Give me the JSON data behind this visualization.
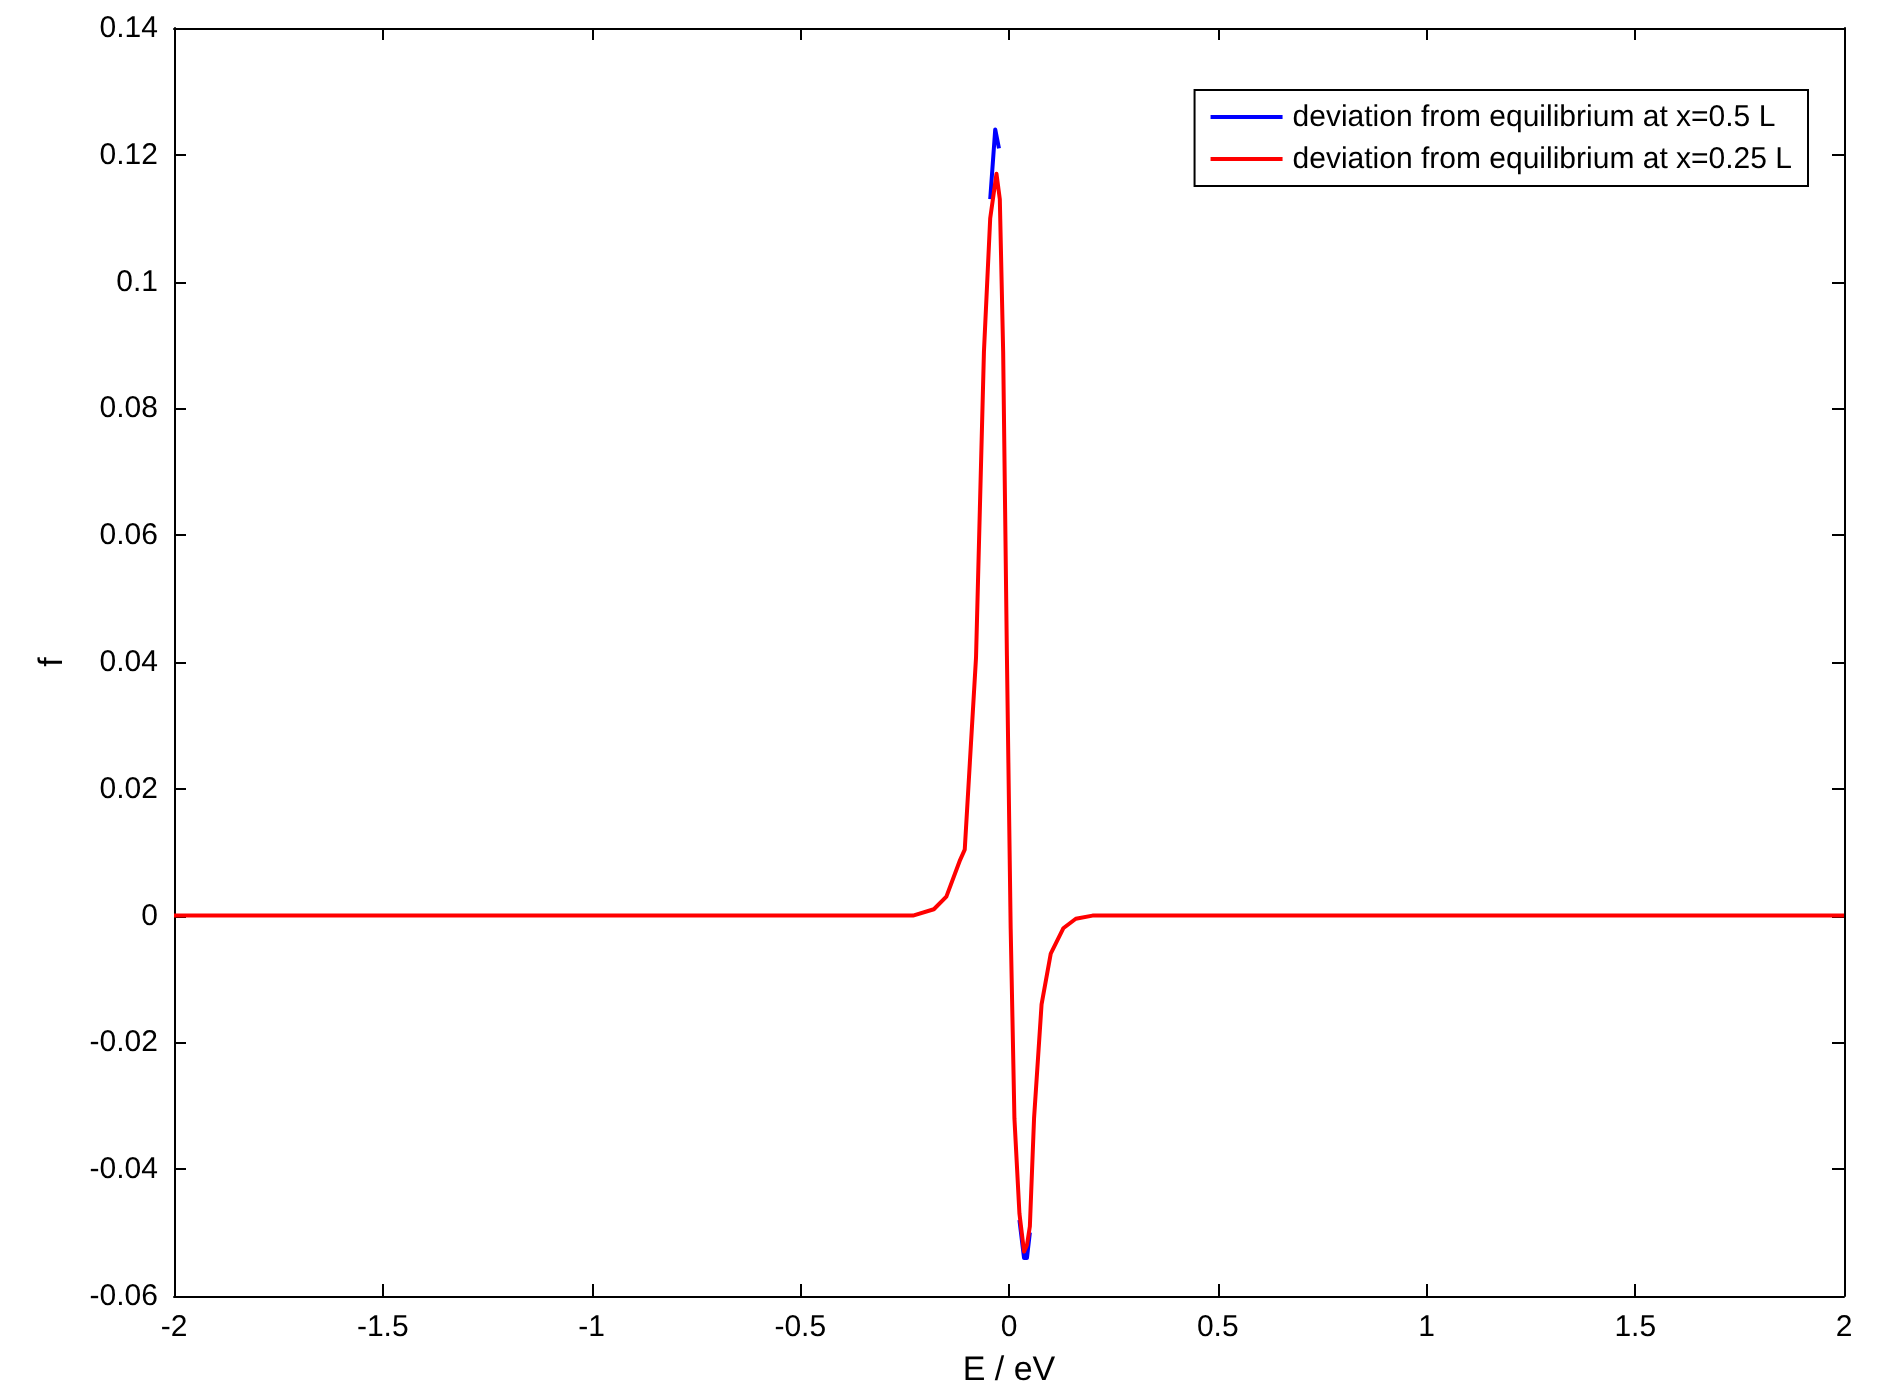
{
  "chart_data": {
    "type": "line",
    "xlabel": "E / eV",
    "ylabel": "f",
    "xlim": [
      -2,
      2
    ],
    "xticks": [
      -2,
      -1.5,
      -1,
      -0.5,
      0,
      0.5,
      1,
      1.5,
      2
    ],
    "ylim": [
      -0.06,
      0.14
    ],
    "yticks": [
      -0.06,
      -0.04,
      -0.02,
      0,
      0.02,
      0.04,
      0.06,
      0.08,
      0.1,
      0.12,
      0.14
    ],
    "grid": false,
    "legend": "top right",
    "marker": "none",
    "line_style": "solid",
    "series": [
      {
        "name": "deviation from equilibrium at x=0.5 L",
        "color": "#0000ff",
        "x": [
          -0.045,
          -0.033,
          -0.024,
          0.004,
          0.025,
          0.036,
          0.043,
          0.05
        ],
        "values": [
          0.113,
          0.124,
          0.121,
          null,
          -0.048,
          -0.054,
          -0.054,
          -0.05
        ]
      },
      {
        "name": "deviation from equilibrium at x=0.25 L",
        "color": "#ff0000",
        "x": [
          -2,
          -0.3,
          -0.23,
          -0.18,
          -0.15,
          -0.117,
          -0.106,
          -0.079,
          -0.06,
          -0.045,
          -0.03,
          -0.022,
          -0.014,
          -0.005,
          0.004,
          0.013,
          0.025,
          0.036,
          0.043,
          0.05,
          0.06,
          0.078,
          0.1,
          0.13,
          0.16,
          0.2,
          0.3,
          2
        ],
        "values": [
          0,
          0,
          0,
          0.001,
          0.003,
          0.0088,
          0.0104,
          0.0407,
          0.089,
          0.11,
          0.117,
          0.113,
          0.089,
          0.041,
          -0.002,
          -0.032,
          -0.047,
          -0.053,
          -0.052,
          -0.049,
          -0.032,
          -0.014,
          -0.006,
          -0.002,
          -0.0005,
          0,
          0,
          0
        ]
      }
    ]
  }
}
